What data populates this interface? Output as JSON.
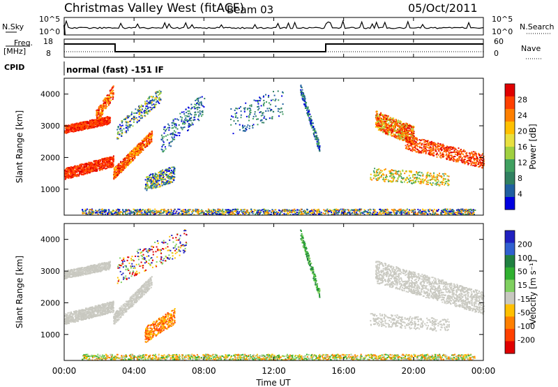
{
  "header": {
    "station": "Christmas Valley West (fitACF)",
    "beam": "Beam 03",
    "date": "05/Oct/2011"
  },
  "noise_panel": {
    "left_label": "N.Sky",
    "right_label": "N.Search",
    "left_ticks": [
      "10^5",
      "10^0"
    ],
    "right_ticks": [
      "10^5",
      "10^0"
    ]
  },
  "freq_panel": {
    "left_label_line1": "Freq.",
    "left_label_line2": "[MHz]",
    "right_label": "Nave",
    "left_ticks": [
      "18",
      "8"
    ],
    "right_ticks": [
      "60",
      "0"
    ]
  },
  "cpid_panel": {
    "label": "CPID",
    "text": "normal (fast) -151 IF"
  },
  "chart_data": [
    {
      "type": "heatmap",
      "name": "power",
      "ylabel": "Slant Range [km]",
      "colorbar_label": "Power [dB]",
      "colorbar_ticks": [
        "28",
        "24",
        "20",
        "16",
        "12",
        "8",
        "4"
      ],
      "colorbar_colors": [
        "#e00000",
        "#ff4000",
        "#ff8000",
        "#ffc000",
        "#e8e040",
        "#a0d040",
        "#40a060",
        "#308060",
        "#2060a0",
        "#0000e0"
      ],
      "y_ticks": [
        "4000",
        "3000",
        "2000",
        "1000"
      ],
      "ylim": [
        180,
        4500
      ],
      "xlim": [
        0,
        24
      ]
    },
    {
      "type": "heatmap",
      "name": "velocity",
      "ylabel": "Slant Range [km]",
      "colorbar_label": "Velocity [m s⁻¹]",
      "colorbar_ticks": [
        "200",
        "100",
        "50",
        "15",
        "-15",
        "-50",
        "-100",
        "-200"
      ],
      "colorbar_colors": [
        "#2020c0",
        "#3060d0",
        "#208040",
        "#30b030",
        "#80d060",
        "#c8c8c0",
        "#ffc000",
        "#ff8000",
        "#ff4000",
        "#e00000"
      ],
      "y_ticks": [
        "4000",
        "3000",
        "2000",
        "1000"
      ],
      "ylim": [
        180,
        4500
      ],
      "xlim": [
        0,
        24
      ]
    }
  ],
  "time_axis": {
    "label": "Time UT",
    "ticks": [
      "00:00",
      "04:00",
      "08:00",
      "12:00",
      "16:00",
      "20:00",
      "00:00"
    ]
  }
}
